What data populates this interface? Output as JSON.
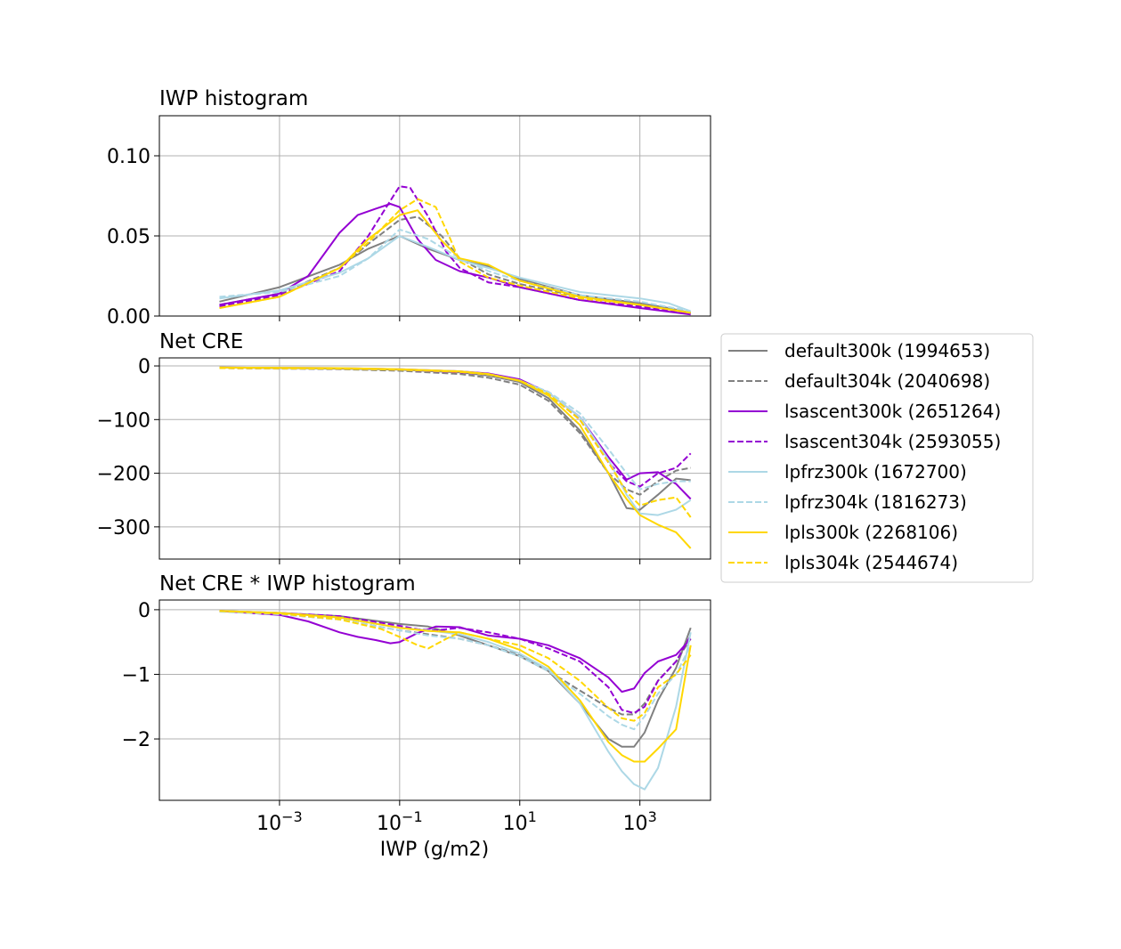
{
  "chart_data": [
    {
      "type": "line",
      "title": "IWP histogram",
      "xscale": "log",
      "xlim": [
        1e-05,
        15000.0
      ],
      "ylim": [
        0.0,
        0.125
      ],
      "yticks": [
        0.0,
        0.05,
        0.1
      ],
      "ytick_labels": [
        "0.00",
        "0.05",
        "0.10"
      ],
      "grid": true,
      "series": [
        {
          "name": "default300k (1994653)",
          "color": "#808080",
          "dash": "solid",
          "x": [
            0.0001,
            0.001,
            0.01,
            0.03,
            0.1,
            0.3,
            1,
            3,
            10,
            100,
            1000,
            3000,
            7000
          ],
          "y": [
            0.009,
            0.018,
            0.032,
            0.042,
            0.05,
            0.042,
            0.035,
            0.031,
            0.023,
            0.013,
            0.008,
            0.005,
            0.002
          ]
        },
        {
          "name": "default304k (2040698)",
          "color": "#808080",
          "dash": "dashed",
          "x": [
            0.0001,
            0.001,
            0.01,
            0.03,
            0.1,
            0.2,
            0.5,
            1,
            3,
            10,
            100,
            1000,
            7000
          ],
          "y": [
            0.007,
            0.014,
            0.03,
            0.045,
            0.06,
            0.062,
            0.05,
            0.036,
            0.026,
            0.02,
            0.012,
            0.007,
            0.002
          ]
        },
        {
          "name": "lsascent300k (2651264)",
          "color": "#9400d3",
          "dash": "solid",
          "x": [
            0.0001,
            0.001,
            0.003,
            0.01,
            0.02,
            0.04,
            0.07,
            0.1,
            0.2,
            0.4,
            1,
            3,
            10,
            100,
            1000,
            7000
          ],
          "y": [
            0.007,
            0.014,
            0.025,
            0.052,
            0.063,
            0.067,
            0.07,
            0.068,
            0.048,
            0.035,
            0.028,
            0.024,
            0.018,
            0.01,
            0.005,
            0.001
          ]
        },
        {
          "name": "lsascent304k (2593055)",
          "color": "#9400d3",
          "dash": "dashed",
          "x": [
            0.0001,
            0.001,
            0.01,
            0.03,
            0.06,
            0.1,
            0.15,
            0.3,
            0.6,
            1,
            3,
            10,
            100,
            1000,
            7000
          ],
          "y": [
            0.006,
            0.013,
            0.028,
            0.05,
            0.068,
            0.081,
            0.08,
            0.062,
            0.04,
            0.03,
            0.021,
            0.018,
            0.01,
            0.006,
            0.002
          ]
        },
        {
          "name": "lpfrz300k (1672700)",
          "color": "#add8e6",
          "dash": "solid",
          "x": [
            0.0001,
            0.001,
            0.01,
            0.03,
            0.1,
            0.3,
            1,
            3,
            10,
            100,
            1000,
            3000,
            7000
          ],
          "y": [
            0.011,
            0.016,
            0.027,
            0.036,
            0.05,
            0.043,
            0.035,
            0.03,
            0.024,
            0.015,
            0.011,
            0.008,
            0.003
          ]
        },
        {
          "name": "lpfrz304k (1816273)",
          "color": "#add8e6",
          "dash": "dashed",
          "x": [
            0.0001,
            0.001,
            0.01,
            0.03,
            0.1,
            0.3,
            1,
            3,
            10,
            100,
            1000,
            7000
          ],
          "y": [
            0.012,
            0.015,
            0.025,
            0.036,
            0.054,
            0.048,
            0.036,
            0.028,
            0.022,
            0.013,
            0.009,
            0.003
          ]
        },
        {
          "name": "lpls300k (2268106)",
          "color": "#ffd700",
          "dash": "solid",
          "x": [
            0.0001,
            0.001,
            0.01,
            0.03,
            0.1,
            0.2,
            0.5,
            1,
            3,
            10,
            100,
            1000,
            7000
          ],
          "y": [
            0.005,
            0.012,
            0.03,
            0.048,
            0.063,
            0.066,
            0.047,
            0.036,
            0.032,
            0.022,
            0.012,
            0.007,
            0.002
          ]
        },
        {
          "name": "lpls304k (2544674)",
          "color": "#ffd700",
          "dash": "dashed",
          "x": [
            0.0001,
            0.001,
            0.01,
            0.03,
            0.1,
            0.2,
            0.4,
            0.7,
            1,
            3,
            10,
            100,
            1000,
            7000
          ],
          "y": [
            0.005,
            0.012,
            0.03,
            0.046,
            0.066,
            0.073,
            0.068,
            0.048,
            0.034,
            0.024,
            0.019,
            0.011,
            0.007,
            0.002
          ]
        }
      ]
    },
    {
      "type": "line",
      "title": "Net CRE",
      "xscale": "log",
      "xlim": [
        1e-05,
        15000.0
      ],
      "ylim": [
        -360,
        15
      ],
      "yticks": [
        0,
        -100,
        -200,
        -300
      ],
      "ytick_labels": [
        "0",
        "−100",
        "−200",
        "−300"
      ],
      "grid": true,
      "series": [
        {
          "name": "default300k (1994653)",
          "color": "#808080",
          "dash": "solid",
          "x": [
            0.0001,
            0.01,
            0.1,
            1,
            3,
            10,
            30,
            100,
            300,
            600,
            1000,
            2000,
            4000,
            7000
          ],
          "y": [
            -3,
            -5,
            -7,
            -12,
            -18,
            -30,
            -60,
            -120,
            -200,
            -265,
            -268,
            -240,
            -210,
            -213
          ]
        },
        {
          "name": "default304k (2040698)",
          "color": "#808080",
          "dash": "dashed",
          "x": [
            0.0001,
            0.01,
            0.1,
            1,
            3,
            10,
            30,
            100,
            300,
            600,
            1000,
            2000,
            4000,
            7000
          ],
          "y": [
            -4,
            -6,
            -9,
            -15,
            -22,
            -35,
            -65,
            -125,
            -200,
            -230,
            -240,
            -215,
            -195,
            -190
          ]
        },
        {
          "name": "lsascent300k (2651264)",
          "color": "#9400d3",
          "dash": "solid",
          "x": [
            0.0001,
            0.01,
            0.1,
            1,
            3,
            10,
            30,
            100,
            300,
            600,
            1000,
            2000,
            4000,
            7000
          ],
          "y": [
            -3,
            -4,
            -6,
            -10,
            -14,
            -25,
            -50,
            -95,
            -170,
            -212,
            -200,
            -198,
            -220,
            -248
          ]
        },
        {
          "name": "lsascent304k (2593055)",
          "color": "#9400d3",
          "dash": "dashed",
          "x": [
            0.0001,
            0.01,
            0.1,
            1,
            3,
            10,
            30,
            100,
            300,
            600,
            1000,
            2000,
            4000,
            7000
          ],
          "y": [
            -4,
            -5,
            -7,
            -12,
            -16,
            -28,
            -52,
            -100,
            -180,
            -215,
            -225,
            -200,
            -190,
            -163
          ]
        },
        {
          "name": "lpfrz300k (1672700)",
          "color": "#add8e6",
          "dash": "solid",
          "x": [
            0.0001,
            0.01,
            0.1,
            1,
            3,
            10,
            30,
            100,
            300,
            600,
            1000,
            2000,
            4000,
            7000
          ],
          "y": [
            -3,
            -4,
            -6,
            -10,
            -15,
            -27,
            -50,
            -95,
            -175,
            -240,
            -275,
            -278,
            -268,
            -250
          ]
        },
        {
          "name": "lpfrz304k (1816273)",
          "color": "#add8e6",
          "dash": "dashed",
          "x": [
            0.0001,
            0.01,
            0.1,
            1,
            3,
            10,
            30,
            100,
            300,
            600,
            1000,
            2000,
            4000,
            7000
          ],
          "y": [
            -4,
            -5,
            -7,
            -11,
            -16,
            -28,
            -48,
            -88,
            -155,
            -200,
            -230,
            -220,
            -215,
            -215
          ]
        },
        {
          "name": "lpls300k (2268106)",
          "color": "#ffd700",
          "dash": "solid",
          "x": [
            0.0001,
            0.01,
            0.1,
            1,
            3,
            10,
            30,
            100,
            300,
            600,
            1000,
            2000,
            4000,
            7000
          ],
          "y": [
            -3,
            -4,
            -6,
            -10,
            -15,
            -28,
            -55,
            -110,
            -200,
            -248,
            -278,
            -296,
            -310,
            -340
          ]
        },
        {
          "name": "lpls304k (2544674)",
          "color": "#ffd700",
          "dash": "dashed",
          "x": [
            0.0001,
            0.01,
            0.1,
            1,
            3,
            10,
            30,
            100,
            300,
            600,
            1000,
            2000,
            4000,
            7000
          ],
          "y": [
            -4,
            -5,
            -7,
            -11,
            -16,
            -27,
            -52,
            -100,
            -180,
            -235,
            -260,
            -250,
            -245,
            -282
          ]
        }
      ]
    },
    {
      "type": "line",
      "title": "Net CRE * IWP histogram",
      "xscale": "log",
      "xlim": [
        1e-05,
        15000.0
      ],
      "xticks": [
        0.001,
        0.1,
        10,
        1000
      ],
      "xtick_labels": [
        "10−3",
        "10−1",
        "101",
        "103"
      ],
      "xlabel": "IWP (g/m2)",
      "ylim": [
        -2.95,
        0.15
      ],
      "yticks": [
        0,
        -1,
        -2
      ],
      "ytick_labels": [
        "0",
        "−1",
        "−2"
      ],
      "grid": true,
      "series": [
        {
          "name": "default300k (1994653)",
          "color": "#808080",
          "dash": "solid",
          "x": [
            0.0001,
            0.001,
            0.01,
            0.1,
            0.3,
            1,
            3,
            10,
            30,
            100,
            300,
            500,
            800,
            1200,
            2000,
            4000,
            7000
          ],
          "y": [
            -0.02,
            -0.05,
            -0.1,
            -0.22,
            -0.26,
            -0.4,
            -0.55,
            -0.72,
            -0.95,
            -1.45,
            -2.0,
            -2.12,
            -2.12,
            -1.9,
            -1.4,
            -0.9,
            -0.28
          ]
        },
        {
          "name": "default304k (2040698)",
          "color": "#808080",
          "dash": "dashed",
          "x": [
            0.0001,
            0.001,
            0.01,
            0.1,
            0.3,
            1,
            3,
            10,
            30,
            100,
            300,
            500,
            800,
            1200,
            2000,
            4000,
            7000
          ],
          "y": [
            -0.02,
            -0.07,
            -0.15,
            -0.32,
            -0.38,
            -0.45,
            -0.55,
            -0.7,
            -0.95,
            -1.25,
            -1.52,
            -1.62,
            -1.62,
            -1.45,
            -1.1,
            -0.8,
            -0.45
          ]
        },
        {
          "name": "lsascent300k (2651264)",
          "color": "#9400d3",
          "dash": "solid",
          "x": [
            0.0001,
            0.001,
            0.003,
            0.01,
            0.02,
            0.04,
            0.07,
            0.1,
            0.2,
            0.4,
            1,
            3,
            10,
            30,
            100,
            300,
            500,
            800,
            1200,
            2000,
            4000,
            7000
          ],
          "y": [
            -0.02,
            -0.08,
            -0.18,
            -0.35,
            -0.42,
            -0.47,
            -0.52,
            -0.5,
            -0.36,
            -0.26,
            -0.27,
            -0.4,
            -0.45,
            -0.55,
            -0.75,
            -1.05,
            -1.27,
            -1.22,
            -0.98,
            -0.8,
            -0.7,
            -0.45
          ]
        },
        {
          "name": "lsascent304k (2593055)",
          "color": "#9400d3",
          "dash": "dashed",
          "x": [
            0.0001,
            0.001,
            0.01,
            0.1,
            0.2,
            0.4,
            1,
            3,
            10,
            30,
            100,
            300,
            500,
            800,
            1200,
            2000,
            4000,
            7000
          ],
          "y": [
            -0.02,
            -0.05,
            -0.1,
            -0.25,
            -0.3,
            -0.32,
            -0.28,
            -0.35,
            -0.45,
            -0.6,
            -0.8,
            -1.2,
            -1.55,
            -1.6,
            -1.5,
            -1.1,
            -0.8,
            -0.4
          ]
        },
        {
          "name": "lpfrz300k (1672700)",
          "color": "#add8e6",
          "dash": "solid",
          "x": [
            0.0001,
            0.001,
            0.01,
            0.1,
            0.3,
            1,
            3,
            10,
            30,
            100,
            300,
            500,
            800,
            1200,
            2000,
            4000,
            7000
          ],
          "y": [
            -0.02,
            -0.05,
            -0.12,
            -0.28,
            -0.32,
            -0.38,
            -0.5,
            -0.68,
            -0.92,
            -1.45,
            -2.2,
            -2.5,
            -2.7,
            -2.78,
            -2.45,
            -1.5,
            -0.35
          ]
        },
        {
          "name": "lpfrz304k (1816273)",
          "color": "#add8e6",
          "dash": "dashed",
          "x": [
            0.0001,
            0.001,
            0.01,
            0.1,
            0.3,
            1,
            3,
            10,
            30,
            100,
            300,
            500,
            800,
            1200,
            2000,
            4000,
            7000
          ],
          "y": [
            -0.03,
            -0.07,
            -0.15,
            -0.32,
            -0.4,
            -0.45,
            -0.55,
            -0.72,
            -0.95,
            -1.3,
            -1.65,
            -1.78,
            -1.85,
            -1.65,
            -1.3,
            -1.0,
            -0.55
          ]
        },
        {
          "name": "lpls300k (2268106)",
          "color": "#ffd700",
          "dash": "solid",
          "x": [
            0.0001,
            0.001,
            0.01,
            0.1,
            0.3,
            1,
            3,
            10,
            30,
            100,
            300,
            500,
            800,
            1200,
            2000,
            4000,
            7000
          ],
          "y": [
            -0.02,
            -0.05,
            -0.12,
            -0.28,
            -0.33,
            -0.35,
            -0.45,
            -0.62,
            -0.88,
            -1.4,
            -2.05,
            -2.25,
            -2.35,
            -2.35,
            -2.15,
            -1.85,
            -0.55
          ]
        },
        {
          "name": "lpls304k (2544674)",
          "color": "#ffd700",
          "dash": "dashed",
          "x": [
            0.0001,
            0.001,
            0.01,
            0.05,
            0.1,
            0.2,
            0.3,
            0.6,
            1,
            3,
            10,
            30,
            100,
            300,
            500,
            800,
            1200,
            2000,
            4000,
            7000
          ],
          "y": [
            -0.02,
            -0.06,
            -0.15,
            -0.3,
            -0.42,
            -0.55,
            -0.6,
            -0.45,
            -0.35,
            -0.45,
            -0.55,
            -0.75,
            -1.1,
            -1.52,
            -1.68,
            -1.72,
            -1.6,
            -1.2,
            -1.0,
            -0.7
          ]
        }
      ]
    }
  ],
  "legend": {
    "placement": "right",
    "entries": [
      {
        "label": "default300k (1994653)",
        "color": "#808080",
        "dash": "solid"
      },
      {
        "label": "default304k (2040698)",
        "color": "#808080",
        "dash": "dashed"
      },
      {
        "label": "lsascent300k (2651264)",
        "color": "#9400d3",
        "dash": "solid"
      },
      {
        "label": "lsascent304k (2593055)",
        "color": "#9400d3",
        "dash": "dashed"
      },
      {
        "label": "lpfrz300k (1672700)",
        "color": "#add8e6",
        "dash": "solid"
      },
      {
        "label": "lpfrz304k (1816273)",
        "color": "#add8e6",
        "dash": "dashed"
      },
      {
        "label": "lpls300k (2268106)",
        "color": "#ffd700",
        "dash": "solid"
      },
      {
        "label": "lpls304k (2544674)",
        "color": "#ffd700",
        "dash": "dashed"
      }
    ]
  }
}
